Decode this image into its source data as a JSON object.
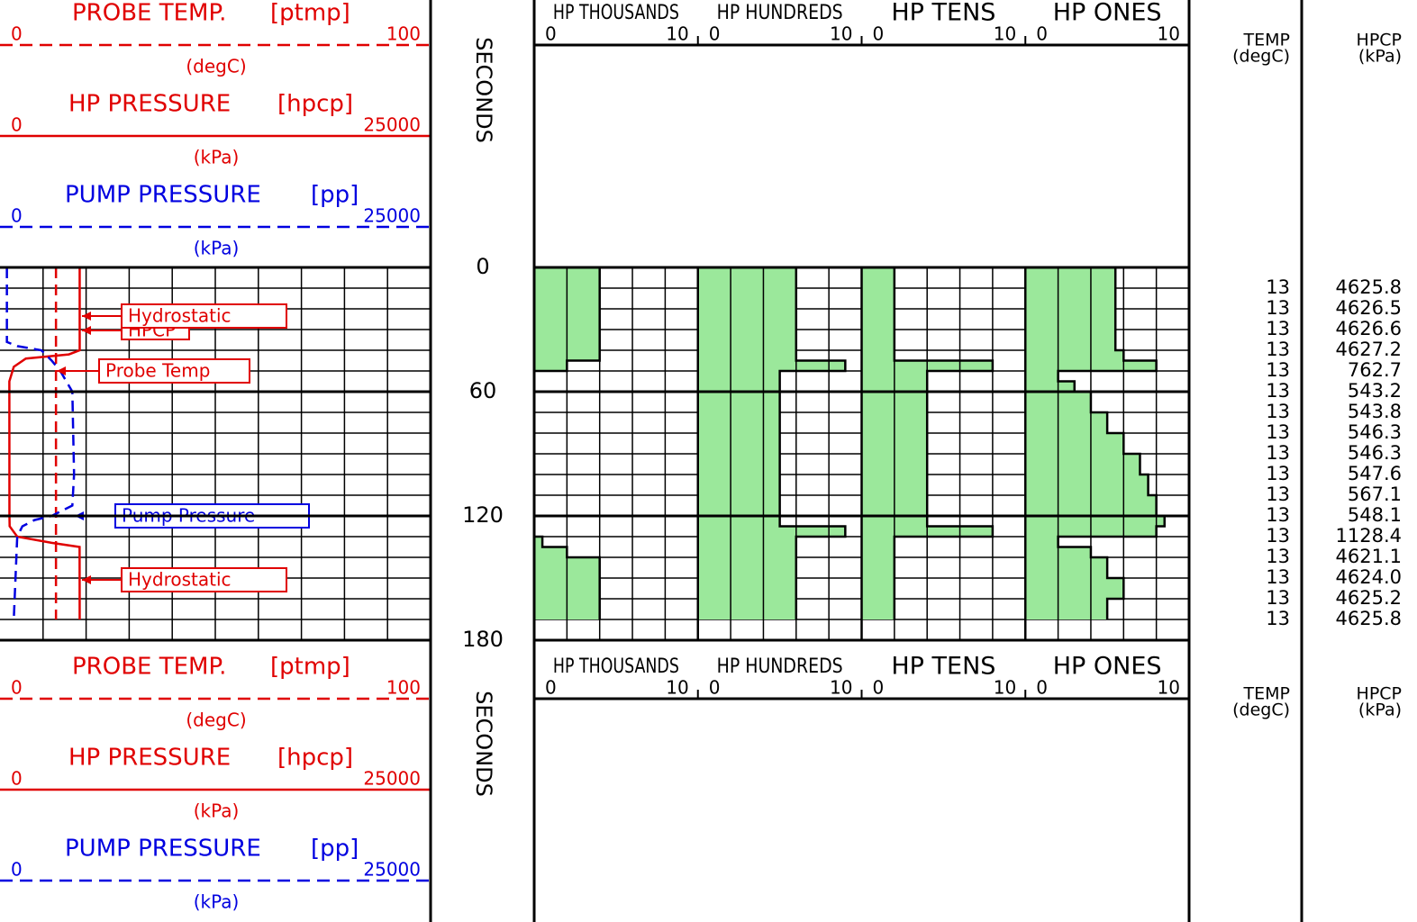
{
  "headers": [
    {
      "title": "PROBE TEMP.",
      "mnemonic": "[ptmp]",
      "scale": [
        0,
        100
      ],
      "unit": "(degC)",
      "color": "#e00000",
      "dashed": true,
      "t": [
        0,
        170
      ],
      "values": [
        13,
        13
      ]
    },
    {
      "title": "HP PRESSURE",
      "mnemonic": "[hpcp]",
      "scale": [
        0,
        25000
      ],
      "unit": "(kPa)",
      "color": "#e00000",
      "dashed": false,
      "t": [
        0,
        40,
        42,
        44,
        48,
        55,
        120,
        125,
        130,
        133,
        135,
        170
      ],
      "values": [
        4626,
        4627,
        4000,
        1500,
        800,
        543,
        548,
        560,
        1000,
        3000,
        4621,
        4626
      ]
    },
    {
      "title": "PUMP PRESSURE",
      "mnemonic": "[pp]",
      "scale": [
        0,
        25000
      ],
      "unit": "(kPa)",
      "color": "#0000e0",
      "dashed": true,
      "t": [
        0,
        36,
        38,
        40,
        45,
        50,
        60,
        100,
        115,
        120,
        122,
        125,
        130,
        170
      ],
      "values": [
        400,
        400,
        1000,
        2400,
        3000,
        3500,
        4200,
        4300,
        4200,
        3000,
        2000,
        1300,
        1000,
        800
      ]
    }
  ],
  "depth": {
    "label": "SECONDS",
    "range": [
      0,
      180
    ],
    "ticks": [
      0,
      60,
      120,
      180
    ]
  },
  "annotations": [
    {
      "text": "HPCP",
      "color": "#e00000"
    },
    {
      "text": "Hydrostatic",
      "color": "#e00000"
    },
    {
      "text": "Probe Temp",
      "color": "#e00000"
    },
    {
      "text": "Pump Pressure",
      "color": "#0000e0"
    },
    {
      "text": "Hydrostatic",
      "color": "#e00000"
    }
  ],
  "digit_t": [
    0,
    10,
    20,
    30,
    40,
    45,
    50,
    55,
    60,
    70,
    80,
    90,
    100,
    110,
    120,
    125,
    130,
    135,
    140,
    150,
    160,
    170
  ],
  "digit_tracks": [
    {
      "title": "HP THOUSANDS",
      "scale": [
        0,
        10
      ],
      "values": [
        4,
        4,
        4,
        4,
        4,
        2,
        0,
        0,
        0,
        0,
        0,
        0,
        0,
        0,
        0,
        0,
        0.5,
        2,
        4,
        4,
        4,
        4
      ]
    },
    {
      "title": "HP HUNDREDS",
      "scale": [
        0,
        10
      ],
      "values": [
        6,
        6,
        6,
        6,
        6,
        9,
        5,
        5,
        5,
        5,
        5,
        5,
        5,
        5,
        5,
        9,
        6,
        6,
        6,
        6,
        6,
        6
      ]
    },
    {
      "title": "HP TENS",
      "scale": [
        0,
        10
      ],
      "values": [
        2,
        2,
        2,
        2,
        2,
        8,
        4,
        4,
        4,
        4,
        4,
        4,
        4,
        4,
        4,
        8,
        2,
        2,
        2,
        2,
        2,
        2
      ]
    },
    {
      "title": "HP ONES",
      "scale": [
        0,
        10
      ],
      "values": [
        5.5,
        5.5,
        5.5,
        5.5,
        6,
        8,
        2,
        3,
        4,
        5,
        6,
        7,
        7.5,
        8,
        8.5,
        8,
        2,
        4,
        5,
        6,
        5,
        5
      ]
    }
  ],
  "fill_color": "#9be89b",
  "table": {
    "columns": [
      [
        "TEMP",
        "(degC)"
      ],
      [
        "HPCP",
        "(kPa)"
      ]
    ],
    "rows": [
      [
        "13",
        "4625.8"
      ],
      [
        "13",
        "4626.5"
      ],
      [
        "13",
        "4626.6"
      ],
      [
        "13",
        "4627.2"
      ],
      [
        "13",
        "762.7"
      ],
      [
        "13",
        "543.2"
      ],
      [
        "13",
        "543.8"
      ],
      [
        "13",
        "546.3"
      ],
      [
        "13",
        "546.3"
      ],
      [
        "13",
        "547.6"
      ],
      [
        "13",
        "567.1"
      ],
      [
        "13",
        "548.1"
      ],
      [
        "13",
        "1128.4"
      ],
      [
        "13",
        "4621.1"
      ],
      [
        "13",
        "4624.0"
      ],
      [
        "13",
        "4625.2"
      ],
      [
        "13",
        "4625.8"
      ]
    ]
  }
}
